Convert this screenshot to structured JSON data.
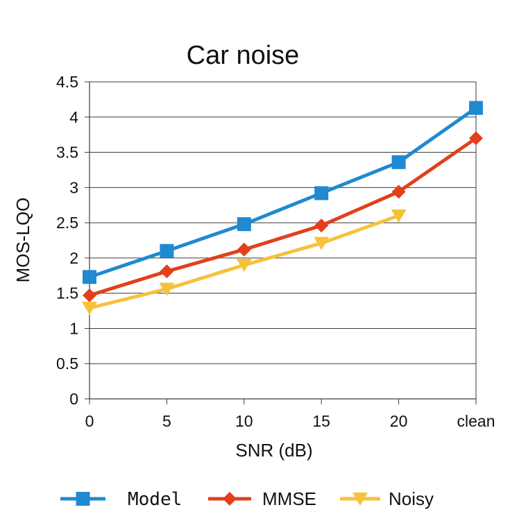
{
  "chart_data": {
    "type": "line",
    "title": "Car noise",
    "xlabel": "SNR (dB)",
    "ylabel": "MOS-LQO",
    "categories": [
      "0",
      "5",
      "10",
      "15",
      "20",
      "clean"
    ],
    "ylim": [
      0,
      4.5
    ],
    "yticks": [
      "0",
      "0.5",
      "1",
      "1.5",
      "2",
      "2.5",
      "3",
      "3.5",
      "4",
      "4.5"
    ],
    "grid": "horizontal",
    "legend_position": "bottom",
    "series": [
      {
        "name": "Model",
        "color": "#1f8ad0",
        "marker": "square",
        "values": [
          1.73,
          2.1,
          2.48,
          2.92,
          3.36,
          4.13
        ]
      },
      {
        "name": "MMSE",
        "color": "#e2401b",
        "marker": "diamond",
        "values": [
          1.47,
          1.81,
          2.12,
          2.46,
          2.94,
          3.7
        ]
      },
      {
        "name": "Noisy",
        "color": "#f5c23a",
        "marker": "triangle-down",
        "values": [
          1.29,
          1.56,
          1.9,
          2.21,
          2.6,
          null
        ]
      }
    ]
  }
}
